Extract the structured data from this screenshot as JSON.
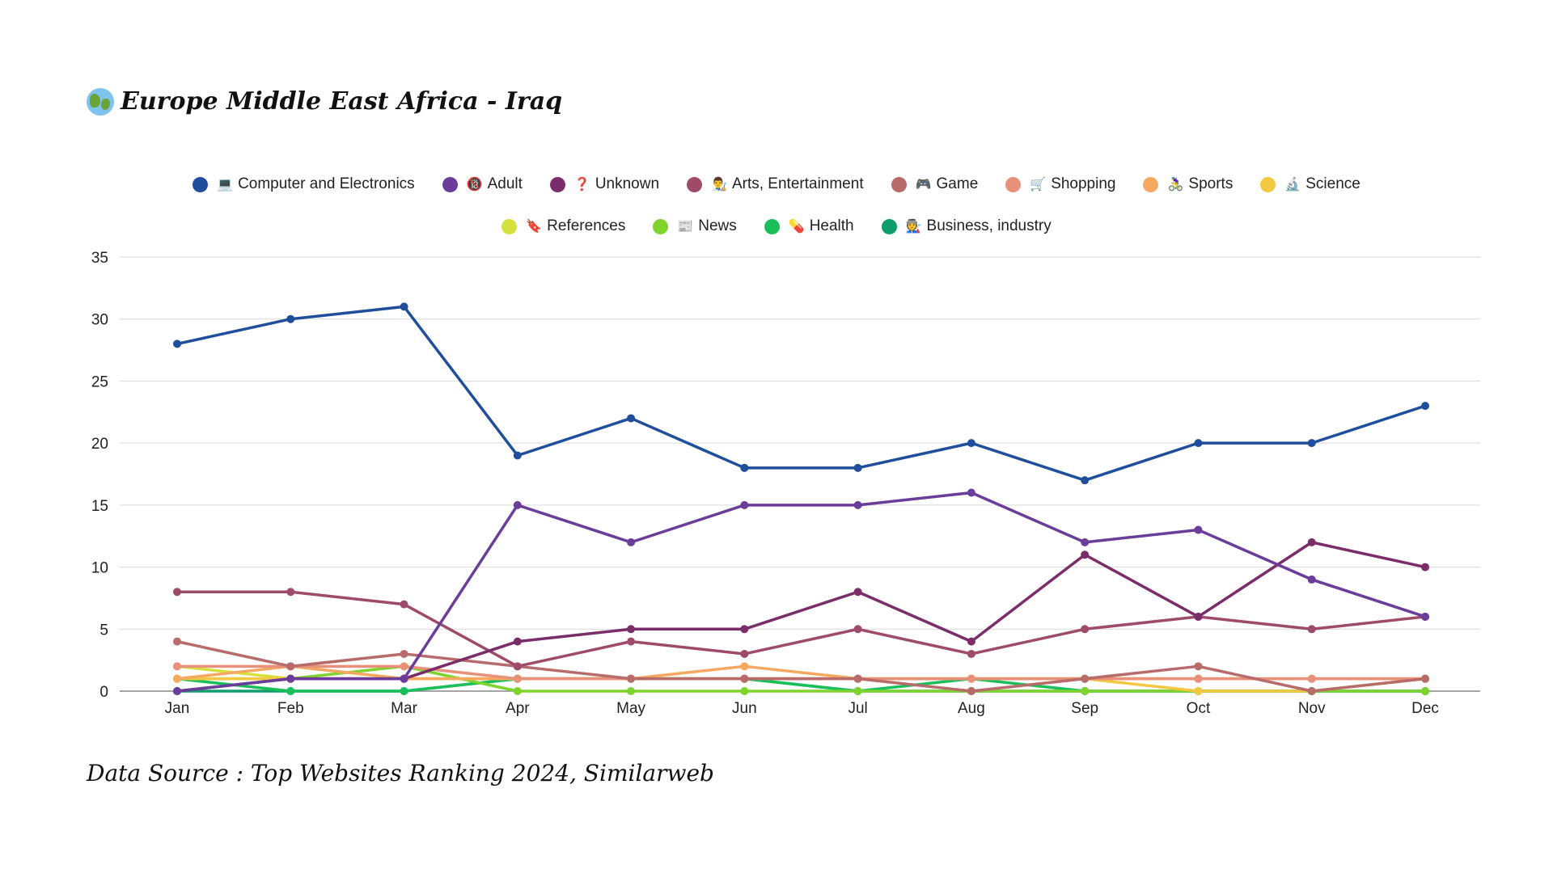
{
  "title": {
    "text": "Europe Middle East Africa - Iraq",
    "icon": "globe-icon"
  },
  "source": "Data Source : Top Websites Ranking 2024, Similarweb",
  "chart_data": {
    "type": "line",
    "title": "Europe Middle East Africa - Iraq",
    "xlabel": "",
    "ylabel": "",
    "ylim": [
      0,
      35
    ],
    "yticks": [
      0,
      5,
      10,
      15,
      20,
      25,
      30,
      35
    ],
    "grid": true,
    "legend_position": "top-center",
    "categories": [
      "Jan",
      "Feb",
      "Mar",
      "Apr",
      "May",
      "Jun",
      "Jul",
      "Aug",
      "Sep",
      "Oct",
      "Nov",
      "Dec"
    ],
    "series": [
      {
        "name": "Computer and Electronics",
        "icon": "💻",
        "color": "#1f4e9c",
        "values": [
          28,
          30,
          31,
          19,
          22,
          18,
          18,
          20,
          17,
          20,
          20,
          23
        ]
      },
      {
        "name": "Adult",
        "icon": "🔞",
        "color": "#6a3d9a",
        "values": [
          0,
          1,
          1,
          15,
          12,
          15,
          15,
          16,
          12,
          13,
          9,
          6
        ]
      },
      {
        "name": "Unknown",
        "icon": "❓",
        "color": "#7b2d6a",
        "values": [
          0,
          1,
          1,
          4,
          5,
          5,
          8,
          4,
          11,
          6,
          12,
          10
        ]
      },
      {
        "name": "Arts, Entertainment",
        "icon": "👨‍🎨",
        "color": "#9e4b6a",
        "values": [
          8,
          8,
          7,
          2,
          4,
          3,
          5,
          3,
          5,
          6,
          5,
          6
        ]
      },
      {
        "name": "Game",
        "icon": "🎮",
        "color": "#b86b6b",
        "values": [
          4,
          2,
          3,
          2,
          1,
          1,
          1,
          0,
          1,
          2,
          0,
          1
        ]
      },
      {
        "name": "Shopping",
        "icon": "🛒",
        "color": "#e8907a",
        "values": [
          2,
          2,
          2,
          1,
          1,
          1,
          1,
          1,
          1,
          1,
          1,
          1
        ]
      },
      {
        "name": "Sports",
        "icon": "🚴‍♀️",
        "color": "#f7a860",
        "values": [
          1,
          2,
          1,
          1,
          1,
          2,
          1,
          1,
          1,
          1,
          1,
          1
        ]
      },
      {
        "name": "Science",
        "icon": "🔬",
        "color": "#f5c842",
        "values": [
          1,
          1,
          1,
          1,
          1,
          1,
          1,
          1,
          1,
          0,
          0,
          1
        ]
      },
      {
        "name": "References",
        "icon": "🔖",
        "color": "#d6e03a",
        "values": [
          2,
          1,
          1,
          1,
          1,
          1,
          1,
          1,
          1,
          1,
          1,
          1
        ]
      },
      {
        "name": "News",
        "icon": "📰",
        "color": "#7ed32d",
        "values": [
          1,
          1,
          2,
          0,
          0,
          0,
          0,
          0,
          0,
          0,
          0,
          0
        ]
      },
      {
        "name": "Health",
        "icon": "💊",
        "color": "#1abf5a",
        "values": [
          1,
          0,
          0,
          1,
          1,
          1,
          0,
          1,
          0,
          0,
          0,
          0
        ]
      },
      {
        "name": "Business, industry",
        "icon": "🧑‍🏭",
        "color": "#0e9e6e",
        "values": [
          0,
          0,
          0,
          1,
          1,
          1,
          0,
          0,
          0,
          0,
          0,
          0
        ]
      }
    ]
  }
}
